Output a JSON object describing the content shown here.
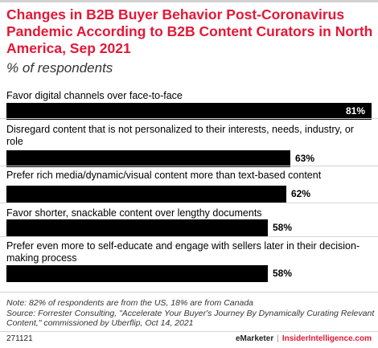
{
  "title": "Changes in B2B Buyer Behavior Post-Coronavirus Pandemic According to B2B Content Curators in North America, Sep 2021",
  "subtitle": "% of respondents",
  "chart_data": {
    "type": "bar",
    "orientation": "horizontal",
    "categories": [
      "Favor digital channels over face-to-face",
      "Disregard content that is not personalized to their interests, needs, industry, or role",
      "Prefer rich media/dynamic/visual content more than text-based content",
      "Favor shorter, snackable content over lengthy documents",
      "Prefer even more to self-educate and engage with sellers later in their decision-making process"
    ],
    "values": [
      81,
      63,
      62,
      58,
      58
    ],
    "value_labels": [
      "81%",
      "63%",
      "62%",
      "58%",
      "58%"
    ],
    "xlim": [
      0,
      81
    ],
    "bar_color": "#000000",
    "grid": false,
    "legend": "none"
  },
  "note": "Note: 82% of respondents are from the US, 18% are from Canada",
  "source": "Source: Forrester Consulting, \"Accelerate Your Buyer's Journey By Dynamically Curating Relevant Content,\" commissioned by Uberflip, Oct 14, 2021",
  "footer": {
    "chart_id": "271121",
    "brand_a": "eMarketer",
    "separator": "|",
    "brand_b": "InsiderIntelligence.com"
  },
  "colors": {
    "title": "#e31837",
    "bar": "#000000"
  }
}
